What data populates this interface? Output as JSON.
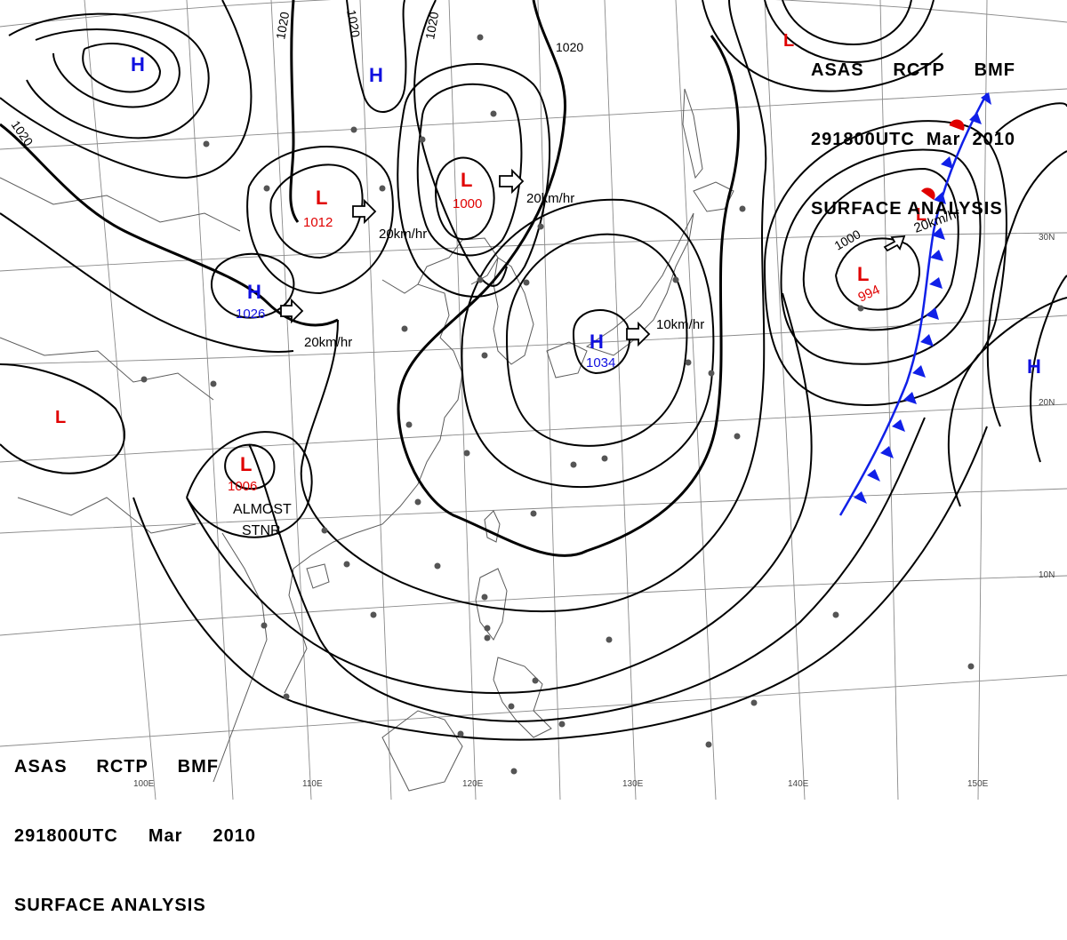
{
  "title": {
    "line1": [
      "ASAS",
      "RCTP",
      "BMF"
    ],
    "line2": [
      "291800UTC",
      "Mar",
      "2010"
    ],
    "line3": "SURFACE ANALYSIS"
  },
  "colors": {
    "high": "#1010e0",
    "low": "#e00000",
    "isobar": "#000000",
    "coast": "#555555",
    "grid": "#777777",
    "front_cold": "#1020e8",
    "front_warm": "#e00000"
  },
  "pressure_centers": [
    {
      "type": "H",
      "value": ""
    },
    {
      "type": "H",
      "value": ""
    },
    {
      "type": "L",
      "value": "1012"
    },
    {
      "type": "L",
      "value": "1000"
    },
    {
      "type": "H",
      "value": "1026"
    },
    {
      "type": "H",
      "value": "1034"
    },
    {
      "type": "L",
      "value": "994"
    },
    {
      "type": "L",
      "value": ""
    },
    {
      "type": "L",
      "value": ""
    },
    {
      "type": "L",
      "value": "1006"
    },
    {
      "type": "H",
      "value": ""
    },
    {
      "type": "L",
      "value": ""
    }
  ],
  "movements": [
    "20km/hr",
    "20km/hr",
    "20km/hr",
    "10km/hr",
    "20km/hr"
  ],
  "stationary_note": [
    "ALMOST",
    "STNR"
  ],
  "isobar_labels": [
    "1020",
    "1020",
    "1020",
    "1020",
    "1020",
    "1000"
  ],
  "lon_labels": [
    "100E",
    "110E",
    "120E",
    "130E",
    "140E",
    "150E"
  ],
  "lat_labels": [
    "30N",
    "20N",
    "10N"
  ],
  "front": {
    "type": "cold front with warm segment"
  }
}
